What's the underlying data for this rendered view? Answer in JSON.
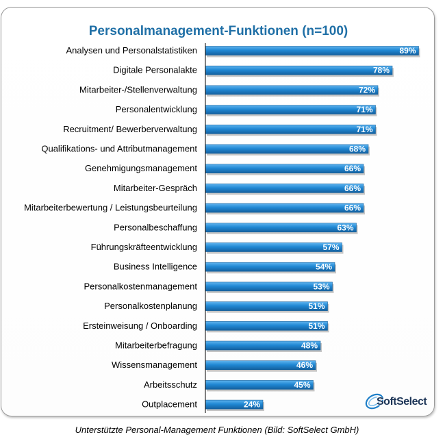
{
  "chart_data": {
    "type": "bar",
    "orientation": "horizontal",
    "title": "Personalmanagement-Funktionen (n=100)",
    "categories": [
      "Analysen und Personalstatistiken",
      "Digitale Personalakte",
      "Mitarbeiter-/Stellenverwaltung",
      "Personalentwicklung",
      "Recruitment/ Bewerberverwaltung",
      "Qualifikations- und Attributmanagement",
      "Genehmigungsmanagement",
      "Mitarbeiter-Gespräch",
      "Mitarbeiterbewertung / Leistungsbeurteilung",
      "Personalbeschaffung",
      "Führungskräfteentwicklung",
      "Business Intelligence",
      "Personalkostenmanagement",
      "Personalkostenplanung",
      "Ersteinweisung / Onboarding",
      "Mitarbeiterbefragung",
      "Wissensmanagement",
      "Arbeitsschutz",
      "Outplacement"
    ],
    "values": [
      89,
      78,
      72,
      71,
      71,
      68,
      66,
      66,
      66,
      63,
      57,
      54,
      53,
      51,
      51,
      48,
      46,
      45,
      24
    ],
    "data_labels": [
      "89%",
      "78%",
      "72%",
      "71%",
      "71%",
      "68%",
      "66%",
      "66%",
      "66%",
      "63%",
      "57%",
      "54%",
      "53%",
      "51%",
      "51%",
      "48%",
      "46%",
      "45%",
      "24%"
    ],
    "xlim": [
      0,
      100
    ],
    "bar_color": "#1f7fc8",
    "grid": false,
    "legend": "none"
  },
  "caption": "Unterstützte Personal-Management Funktionen (Bild: SoftSelect GmbH)",
  "logo": {
    "text": "SoftSelect",
    "icon": "swirl-icon"
  }
}
